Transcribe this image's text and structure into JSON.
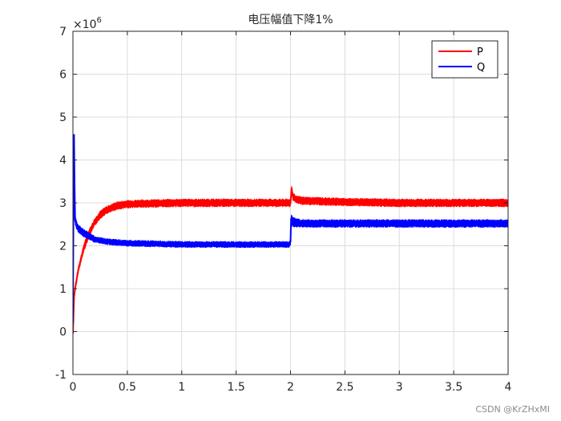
{
  "chart_data": {
    "type": "line",
    "title": "电压幅值下降1%",
    "xlim": [
      0,
      4
    ],
    "ylim": [
      -1,
      7
    ],
    "y_exponent_label": "×10",
    "y_exponent_power": "6",
    "x_ticks": [
      "0",
      "0.5",
      "1",
      "1.5",
      "2",
      "2.5",
      "3",
      "3.5",
      "4"
    ],
    "y_ticks": [
      "-1",
      "0",
      "1",
      "2",
      "3",
      "4",
      "5",
      "6",
      "7"
    ],
    "grid": true,
    "legend_position": "top-right",
    "series": [
      {
        "name": "P",
        "color": "#ff0000",
        "x": [
          0,
          0.01,
          0.02,
          0.05,
          0.1,
          0.15,
          0.2,
          0.25,
          0.3,
          0.4,
          0.5,
          0.6,
          0.8,
          1.0,
          1.5,
          1.99,
          2.0,
          2.01,
          2.02,
          2.05,
          2.1,
          2.5,
          3.0,
          3.5,
          4.0
        ],
        "y": [
          -0.05,
          0.8,
          1.0,
          1.45,
          1.95,
          2.3,
          2.55,
          2.72,
          2.82,
          2.93,
          2.97,
          2.98,
          2.99,
          3.0,
          3.0,
          3.0,
          3.0,
          3.35,
          3.15,
          3.08,
          3.05,
          3.02,
          3.0,
          3.0,
          3.0
        ],
        "band": [
          0.05,
          0.08,
          0.08,
          0.08,
          0.1,
          0.1,
          0.1,
          0.1,
          0.1,
          0.1,
          0.1,
          0.1,
          0.1,
          0.1,
          0.1,
          0.1,
          0.1,
          0.05,
          0.1,
          0.1,
          0.1,
          0.1,
          0.1,
          0.1,
          0.1
        ]
      },
      {
        "name": "Q",
        "color": "#0000ff",
        "x": [
          0,
          0.005,
          0.01,
          0.015,
          0.02,
          0.025,
          0.03,
          0.05,
          0.1,
          0.2,
          0.3,
          0.4,
          0.5,
          0.7,
          1.0,
          1.5,
          1.99,
          2.0,
          2.005,
          2.02,
          2.1,
          2.5,
          3.0,
          3.5,
          4.0
        ],
        "y": [
          0.2,
          3.0,
          4.6,
          3.4,
          2.6,
          2.55,
          2.5,
          2.4,
          2.3,
          2.15,
          2.1,
          2.08,
          2.06,
          2.05,
          2.03,
          2.03,
          2.03,
          2.1,
          2.6,
          2.55,
          2.52,
          2.52,
          2.52,
          2.52,
          2.52
        ],
        "band": [
          0.1,
          0.3,
          0.1,
          0.2,
          0.15,
          0.12,
          0.12,
          0.1,
          0.1,
          0.08,
          0.08,
          0.08,
          0.08,
          0.08,
          0.08,
          0.08,
          0.08,
          0.08,
          0.15,
          0.12,
          0.1,
          0.1,
          0.1,
          0.1,
          0.1
        ]
      }
    ]
  },
  "watermark": "CSDN @KrZHxMI"
}
